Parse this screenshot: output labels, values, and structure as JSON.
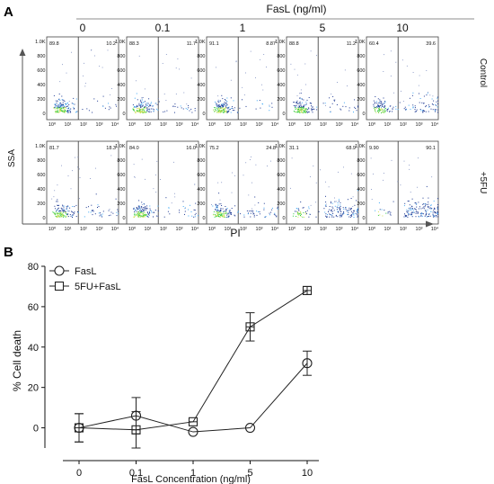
{
  "panel_a": {
    "letter": "A",
    "fasl_header": "FasL (ng/ml)",
    "concentrations": [
      "0",
      "0.1",
      "1",
      "5",
      "10"
    ],
    "rows": [
      {
        "name": "Control",
        "left_pct": [
          "89.8",
          "88.3",
          "91.1",
          "88.8",
          "60.4"
        ],
        "right_pct": [
          "10.2",
          "11.7",
          "8.87",
          "11.2",
          "39.6"
        ]
      },
      {
        "name": "+5FU",
        "left_pct": [
          "81.7",
          "84.0",
          "75.2",
          "31.1",
          "9.90"
        ],
        "right_pct": [
          "18.3",
          "16.0",
          "24.8",
          "68.9",
          "90.1"
        ]
      }
    ],
    "y_ticks": [
      "1.0K",
      "800",
      "600",
      "400",
      "200",
      "0"
    ],
    "x_ticks": [
      "10⁰",
      "10¹",
      "10²",
      "10³",
      "10⁴"
    ],
    "y_axis_label": "SSA",
    "x_axis_label": "PI"
  },
  "panel_b": {
    "letter": "B"
  },
  "chart_data": {
    "type": "line",
    "title": "",
    "xlabel": "FasL Concentration (ng/ml)",
    "ylabel": "% Cell death",
    "categories": [
      "0",
      "0.1",
      "1",
      "5",
      "10"
    ],
    "ylim": [
      -10,
      80
    ],
    "yticks": [
      "0",
      "20",
      "40",
      "60",
      "80"
    ],
    "legend_position": "top-left",
    "grid": false,
    "series": [
      {
        "name": "FasL",
        "marker": "circle",
        "values": [
          0,
          6,
          -2,
          0,
          32
        ],
        "errors": [
          7,
          9,
          0,
          0,
          6
        ]
      },
      {
        "name": "5FU+FasL",
        "marker": "square",
        "values": [
          0,
          -1,
          3,
          50,
          68
        ],
        "errors": [
          7,
          9,
          0,
          7,
          2
        ]
      }
    ]
  }
}
